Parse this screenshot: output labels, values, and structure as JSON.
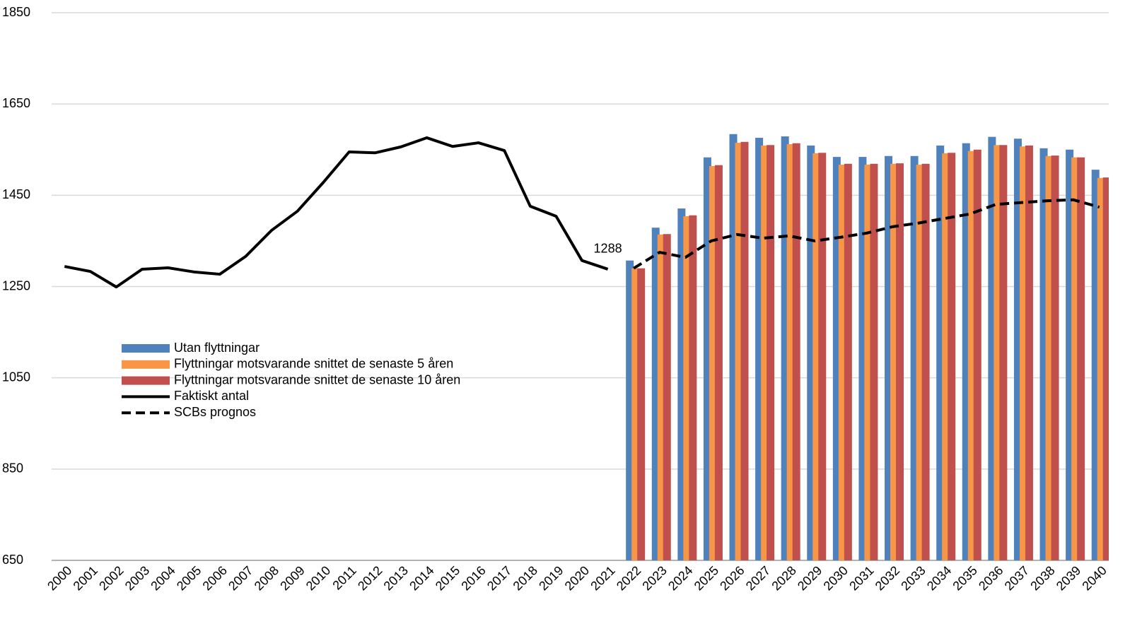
{
  "chart_data": {
    "type": "bar",
    "categories": [
      "2000",
      "2001",
      "2002",
      "2003",
      "2004",
      "2005",
      "2006",
      "2007",
      "2008",
      "2009",
      "2010",
      "2011",
      "2012",
      "2013",
      "2014",
      "2015",
      "2016",
      "2017",
      "2018",
      "2019",
      "2020",
      "2021",
      "2022",
      "2023",
      "2024",
      "2025",
      "2026",
      "2027",
      "2028",
      "2029",
      "2030",
      "2031",
      "2032",
      "2033",
      "2034",
      "2035",
      "2036",
      "2037",
      "2038",
      "2039",
      "2040"
    ],
    "series": [
      {
        "name": "Utan flyttningar",
        "type": "bar",
        "color": "#4f81bd",
        "values": [
          null,
          null,
          null,
          null,
          null,
          null,
          null,
          null,
          null,
          null,
          null,
          null,
          null,
          null,
          null,
          null,
          null,
          null,
          null,
          null,
          null,
          null,
          1307,
          1379,
          1421,
          1533,
          1584,
          1576,
          1579,
          1559,
          1534,
          1534,
          1536,
          1536,
          1559,
          1564,
          1578,
          1574,
          1553,
          1550,
          1506
        ]
      },
      {
        "name": "Flyttningar motsvarande snittet de senaste 5 åren",
        "type": "bar",
        "color": "#f79646",
        "values": [
          null,
          null,
          null,
          null,
          null,
          null,
          null,
          null,
          null,
          null,
          null,
          null,
          null,
          null,
          null,
          null,
          null,
          null,
          null,
          null,
          null,
          null,
          1290,
          1364,
          1404,
          1514,
          1565,
          1559,
          1562,
          1542,
          1517,
          1517,
          1519,
          1517,
          1542,
          1547,
          1560,
          1557,
          1536,
          1533,
          1488
        ]
      },
      {
        "name": "Flyttningar motsvarande snittet de senaste 10 åren",
        "type": "bar",
        "color": "#c0504d",
        "values": [
          null,
          null,
          null,
          null,
          null,
          null,
          null,
          null,
          null,
          null,
          null,
          null,
          null,
          null,
          null,
          null,
          null,
          null,
          null,
          null,
          null,
          null,
          1290,
          1365,
          1406,
          1516,
          1567,
          1560,
          1564,
          1543,
          1519,
          1519,
          1520,
          1519,
          1543,
          1550,
          1560,
          1559,
          1537,
          1533,
          1489
        ]
      },
      {
        "name": "Faktiskt antal",
        "type": "line",
        "color": "#000000",
        "dashed": false,
        "values": [
          1294,
          1283,
          1249,
          1288,
          1291,
          1282,
          1277,
          1316,
          1373,
          1415,
          1478,
          1545,
          1543,
          1556,
          1576,
          1557,
          1565,
          1548,
          1426,
          1404,
          1307,
          1288,
          null,
          null,
          null,
          null,
          null,
          null,
          null,
          null,
          null,
          null,
          null,
          null,
          null,
          null,
          null,
          null,
          null,
          null,
          null
        ]
      },
      {
        "name": "SCBs prognos",
        "type": "line",
        "color": "#000000",
        "dashed": true,
        "values": [
          null,
          null,
          null,
          null,
          null,
          null,
          null,
          null,
          null,
          null,
          null,
          null,
          null,
          null,
          null,
          null,
          null,
          null,
          null,
          null,
          null,
          null,
          1290,
          1325,
          1314,
          1350,
          1364,
          1356,
          1361,
          1350,
          1358,
          1367,
          1381,
          1389,
          1399,
          1409,
          1430,
          1434,
          1438,
          1440,
          1424
        ]
      }
    ],
    "ylim": [
      650,
      1850
    ],
    "yticks": [
      650,
      850,
      1050,
      1250,
      1450,
      1650,
      1850
    ],
    "grid": true
  }
}
